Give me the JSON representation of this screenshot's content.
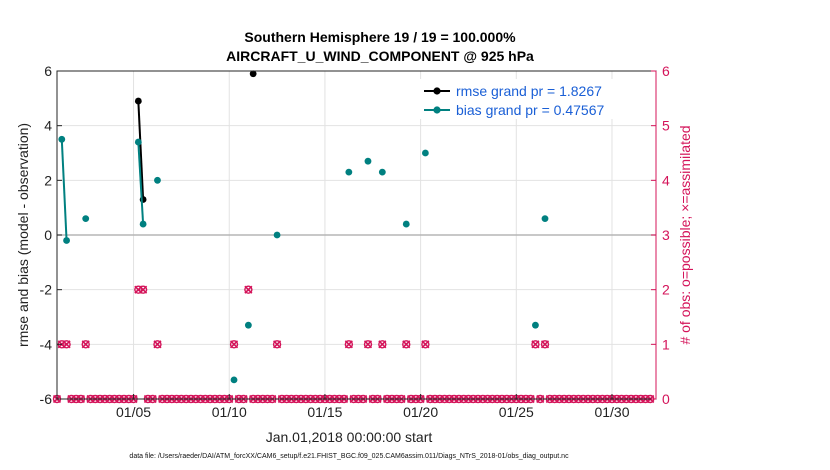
{
  "chart_data": {
    "type": "line",
    "title": "Southern Hemisphere 19 / 19 = 100.000%",
    "subtitle": "AIRCRAFT_U_WIND_COMPONENT @ 925 hPa",
    "xlabel": "Jan.01,2018 00:00:00 start",
    "ylabel": "rmse and bias (model - observation)",
    "ylabel_right": "# of obs: o=possible; ×=assimilated",
    "footnote": "data file: /Users/raeder/DAI/ATM_forcXX/CAM6_setup/f.e21.FHIST_BGC.f09_025.CAM6assim.011/Diags_NTrS_2018-01/obs_diag_output.nc",
    "xlim": [
      1,
      32.3
    ],
    "ylim": [
      -6,
      6
    ],
    "ylim_right": [
      0,
      6
    ],
    "x_ticks": [
      5,
      10,
      15,
      20,
      25,
      30
    ],
    "x_tick_labels": [
      "01/05",
      "01/10",
      "01/15",
      "01/20",
      "01/25",
      "01/30"
    ],
    "y_ticks": [
      -6,
      -4,
      -2,
      0,
      2,
      4,
      6
    ],
    "y_tick_labels": [
      "-6",
      "-4",
      "-2",
      "0",
      "2",
      "4",
      "6"
    ],
    "y_right_ticks": [
      0,
      1,
      2,
      3,
      4,
      5,
      6
    ],
    "y_right_tick_labels": [
      "0",
      "1",
      "2",
      "3",
      "4",
      "5",
      "6"
    ],
    "series": [
      {
        "name": "rmse grand pr = 1.8267",
        "color": "#000000",
        "points": [
          [
            5.25,
            4.9
          ],
          [
            5.5,
            1.3
          ],
          [
            11.25,
            5.9
          ]
        ]
      },
      {
        "name": "bias grand pr = 0.47567",
        "color": "#008080",
        "points": [
          [
            1.25,
            3.5
          ],
          [
            1.5,
            -0.2
          ],
          [
            2.5,
            0.6
          ],
          [
            5.25,
            3.4
          ],
          [
            5.5,
            0.4
          ],
          [
            6.25,
            2.0
          ],
          [
            10.25,
            -5.3
          ],
          [
            11.0,
            -3.3
          ],
          [
            12.5,
            0.0
          ],
          [
            16.25,
            2.3
          ],
          [
            17.25,
            2.7
          ],
          [
            18.0,
            2.3
          ],
          [
            19.25,
            0.4
          ],
          [
            20.25,
            3.0
          ],
          [
            26.0,
            -3.3
          ],
          [
            26.5,
            0.6
          ]
        ]
      }
    ],
    "obs_counts": {
      "name": "# of obs (possible / assimilated)",
      "color": "#d4145a",
      "points": [
        [
          1.25,
          1
        ],
        [
          1.5,
          1
        ],
        [
          2.5,
          1
        ],
        [
          5.25,
          2
        ],
        [
          5.5,
          2
        ],
        [
          6.25,
          1
        ],
        [
          10.25,
          1
        ],
        [
          11.0,
          2
        ],
        [
          12.5,
          1
        ],
        [
          16.25,
          1
        ],
        [
          17.25,
          1
        ],
        [
          18.0,
          1
        ],
        [
          19.25,
          1
        ],
        [
          20.25,
          1
        ],
        [
          26.0,
          1
        ],
        [
          26.5,
          1
        ]
      ],
      "zero_x": [
        1,
        1.75,
        2,
        2.25,
        2.75,
        3,
        3.25,
        3.5,
        3.75,
        4,
        4.25,
        4.5,
        4.75,
        5,
        5.75,
        6,
        6.5,
        6.75,
        7,
        7.25,
        7.5,
        7.75,
        8,
        8.25,
        8.5,
        8.75,
        9,
        9.25,
        9.5,
        9.75,
        10,
        10.5,
        10.75,
        11.25,
        11.5,
        11.75,
        12,
        12.25,
        12.75,
        13,
        13.25,
        13.5,
        13.75,
        14,
        14.25,
        14.5,
        14.75,
        15,
        15.25,
        15.5,
        15.75,
        16,
        16.5,
        16.75,
        17,
        17.5,
        17.75,
        18.25,
        18.5,
        18.75,
        19,
        19.5,
        19.75,
        20,
        20.5,
        20.75,
        21,
        21.25,
        21.5,
        21.75,
        22,
        22.25,
        22.5,
        22.75,
        23,
        23.25,
        23.5,
        23.75,
        24,
        24.25,
        24.5,
        24.75,
        25,
        25.25,
        25.5,
        25.75,
        26.25,
        26.75,
        27,
        27.25,
        27.5,
        27.75,
        28,
        28.25,
        28.5,
        28.75,
        29,
        29.25,
        29.5,
        29.75,
        30,
        30.25,
        30.5,
        30.75,
        31,
        31.25,
        31.5,
        31.75,
        32
      ]
    }
  }
}
